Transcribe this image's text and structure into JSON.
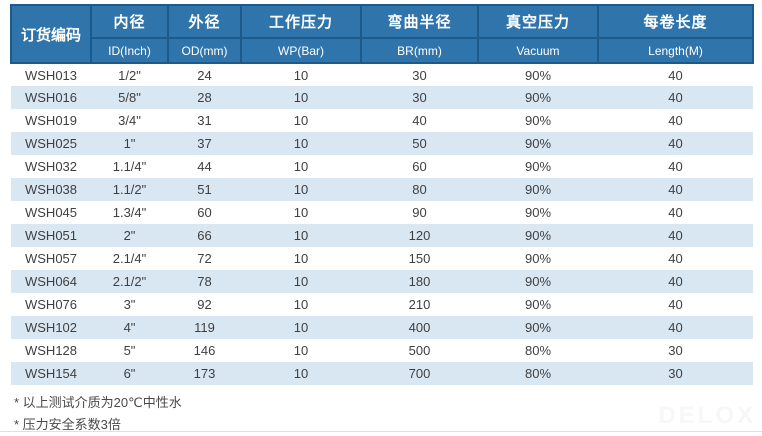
{
  "watermark": "DELOX",
  "colors": {
    "header_bg": "#2f74aa",
    "header_border": "#1d5a8c",
    "row_stripe": "#d9e7f3",
    "row_text": "#3f3f3f"
  },
  "table": {
    "columns": [
      {
        "cn": "订货编码",
        "en": ""
      },
      {
        "cn": "内径",
        "en": "ID(Inch)"
      },
      {
        "cn": "外径",
        "en": "OD(mm)"
      },
      {
        "cn": "工作压力",
        "en": "WP(Bar)"
      },
      {
        "cn": "弯曲半径",
        "en": "BR(mm)"
      },
      {
        "cn": "真空压力",
        "en": "Vacuum"
      },
      {
        "cn": "每卷长度",
        "en": "Length(M)"
      }
    ],
    "rows": [
      [
        "WSH013",
        "1/2\"",
        "24",
        "10",
        "30",
        "90%",
        "40"
      ],
      [
        "WSH016",
        "5/8\"",
        "28",
        "10",
        "30",
        "90%",
        "40"
      ],
      [
        "WSH019",
        "3/4\"",
        "31",
        "10",
        "40",
        "90%",
        "40"
      ],
      [
        "WSH025",
        "1\"",
        "37",
        "10",
        "50",
        "90%",
        "40"
      ],
      [
        "WSH032",
        "1.1/4\"",
        "44",
        "10",
        "60",
        "90%",
        "40"
      ],
      [
        "WSH038",
        "1.1/2\"",
        "51",
        "10",
        "80",
        "90%",
        "40"
      ],
      [
        "WSH045",
        "1.3/4\"",
        "60",
        "10",
        "90",
        "90%",
        "40"
      ],
      [
        "WSH051",
        "2\"",
        "66",
        "10",
        "120",
        "90%",
        "40"
      ],
      [
        "WSH057",
        "2.1/4\"",
        "72",
        "10",
        "150",
        "90%",
        "40"
      ],
      [
        "WSH064",
        "2.1/2\"",
        "78",
        "10",
        "180",
        "90%",
        "40"
      ],
      [
        "WSH076",
        "3\"",
        "92",
        "10",
        "210",
        "90%",
        "40"
      ],
      [
        "WSH102",
        "4\"",
        "119",
        "10",
        "400",
        "90%",
        "40"
      ],
      [
        "WSH128",
        "5\"",
        "146",
        "10",
        "500",
        "80%",
        "30"
      ],
      [
        "WSH154",
        "6\"",
        "173",
        "10",
        "700",
        "80%",
        "30"
      ]
    ]
  },
  "footnotes": [
    "* 以上测试介质为20℃中性水",
    "* 压力安全系数3倍"
  ]
}
